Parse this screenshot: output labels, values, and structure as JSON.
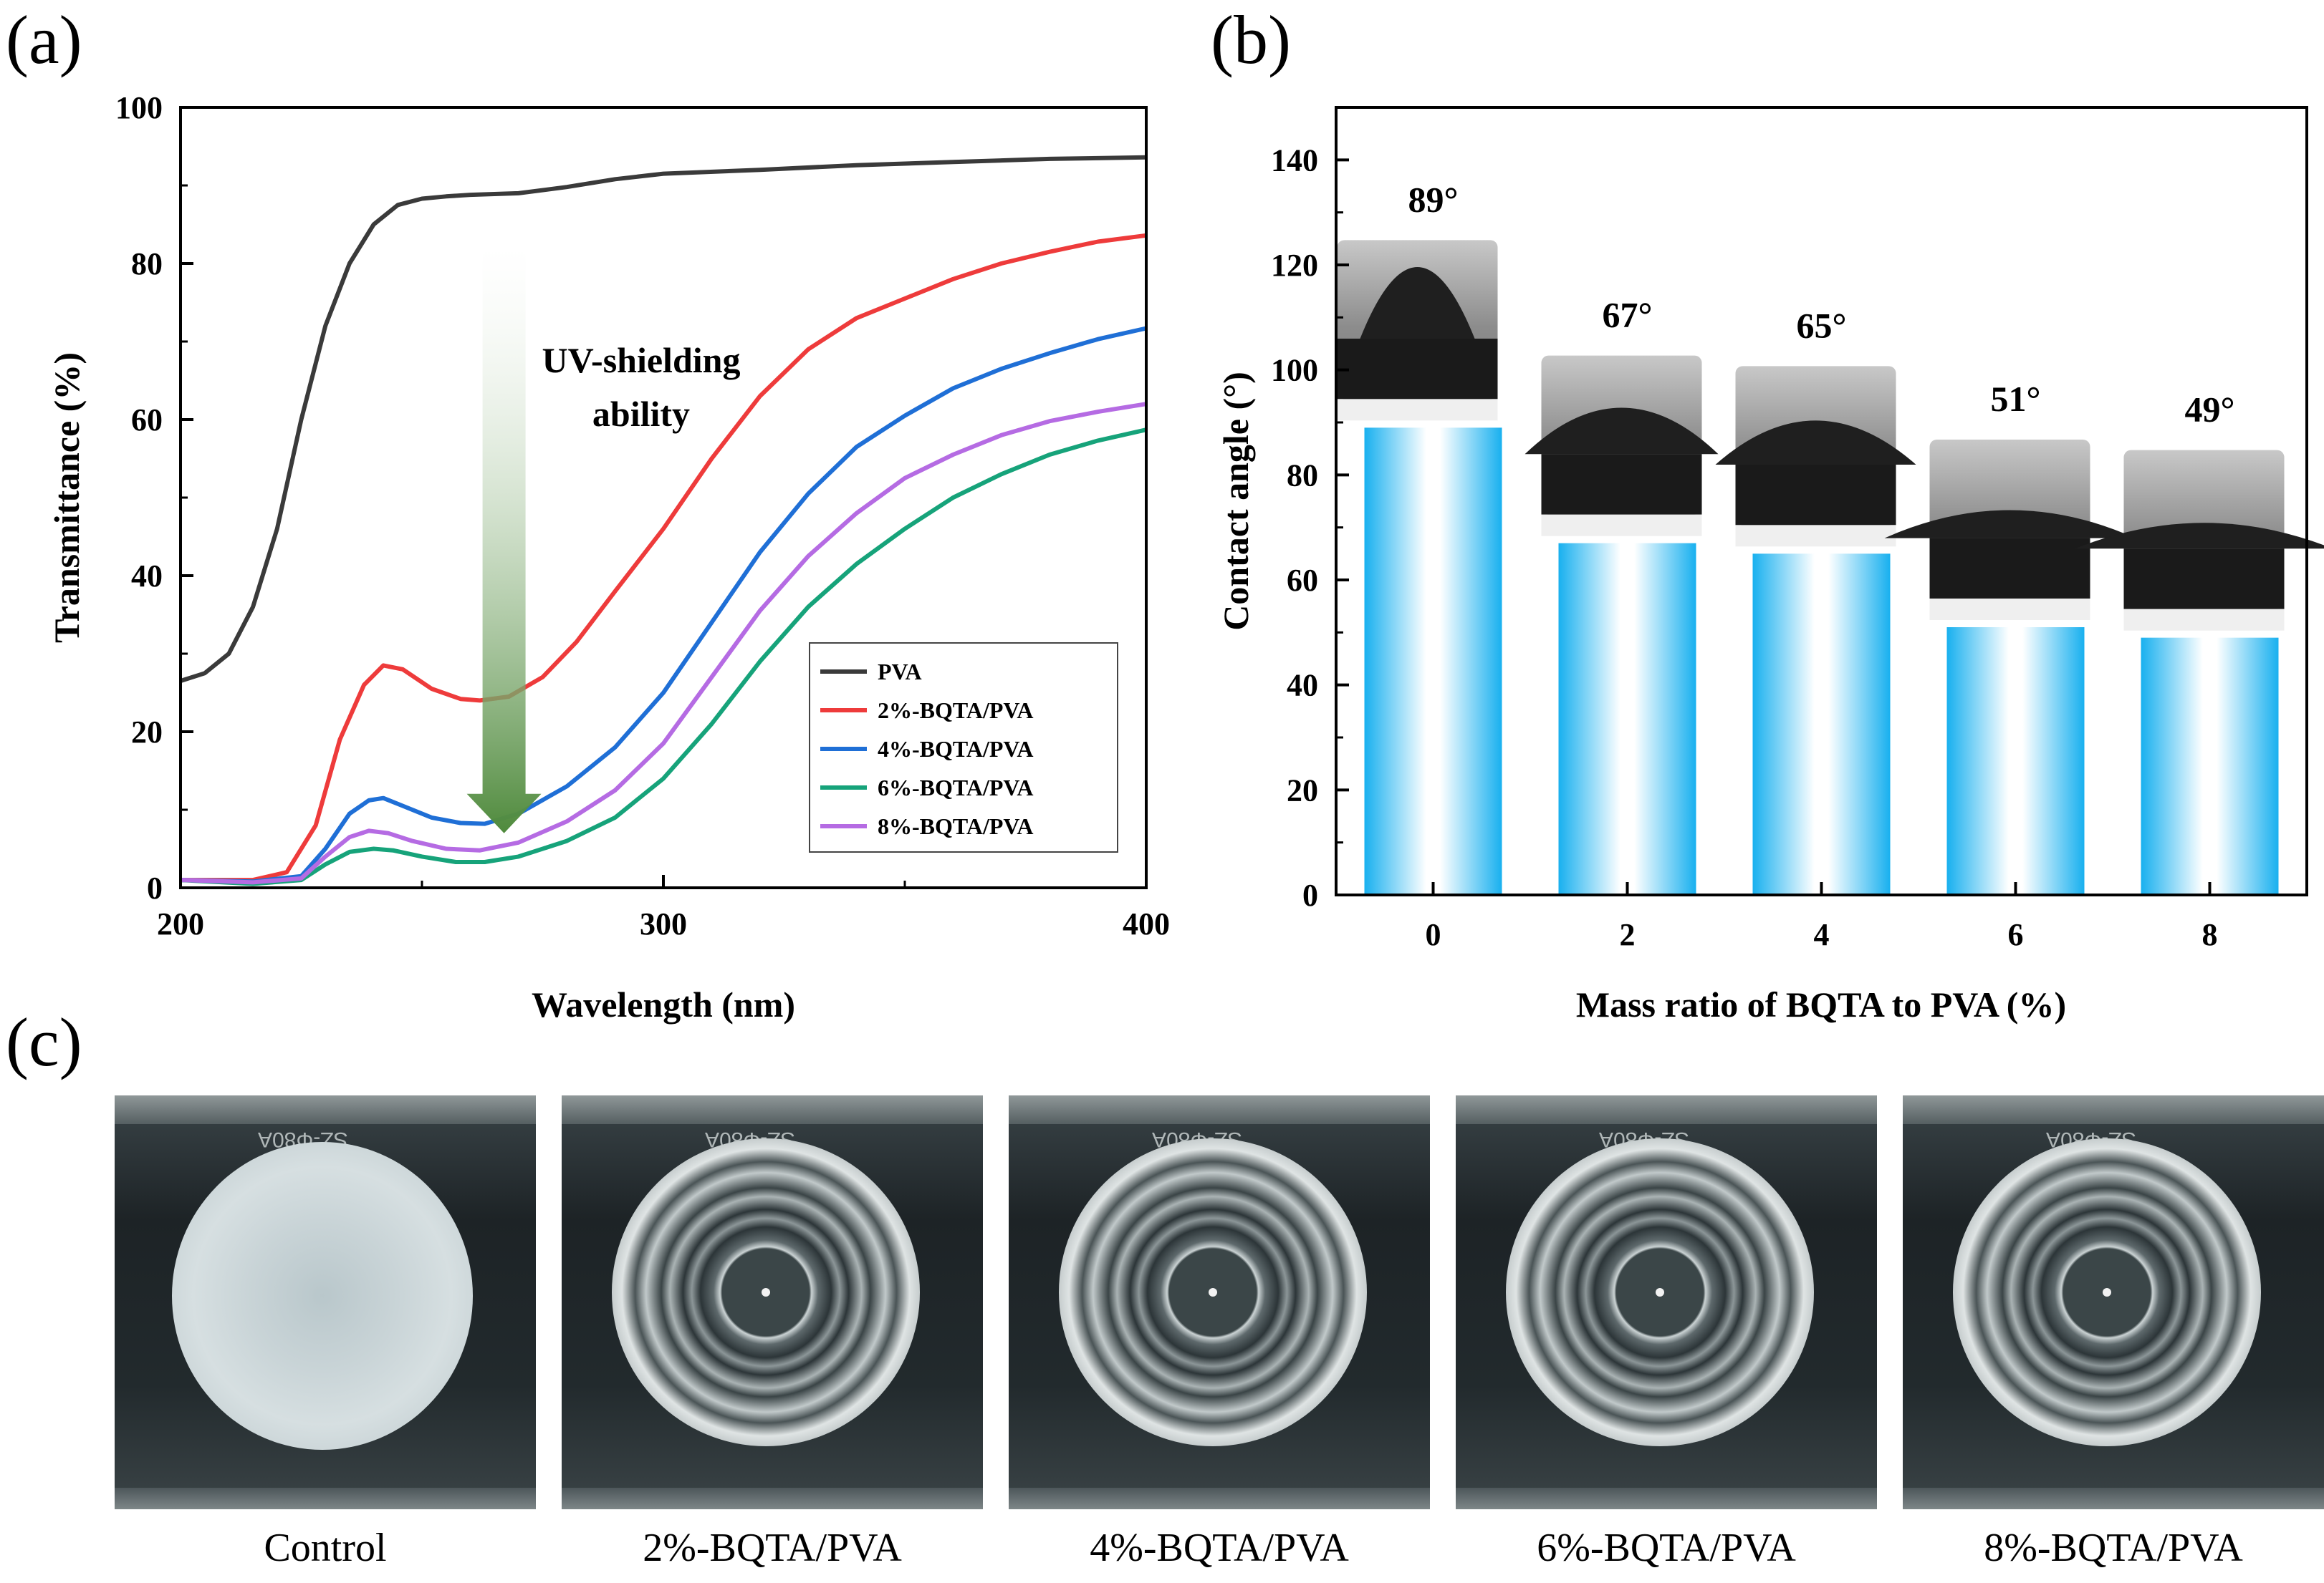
{
  "panel_labels": {
    "a": "(a)",
    "b": "(b)",
    "c": "(c)"
  },
  "chart_data": [
    {
      "type": "line",
      "panel": "(a)",
      "xlabel": "Wavelength (nm)",
      "ylabel": "Transmittance (%)",
      "xlim": [
        200,
        400
      ],
      "ylim": [
        0,
        100
      ],
      "xticks": [
        200,
        300,
        400
      ],
      "yticks": [
        0,
        20,
        40,
        60,
        80,
        100
      ],
      "annotation": {
        "line1": "UV-shielding",
        "line2": "ability",
        "arrow_from": [
          267,
          82
        ],
        "arrow_to": [
          267,
          7
        ]
      },
      "series": [
        {
          "name": "PVA",
          "color": "#3a3a3a",
          "x": [
            200,
            205,
            210,
            215,
            220,
            225,
            230,
            235,
            240,
            245,
            250,
            255,
            260,
            270,
            280,
            290,
            300,
            320,
            340,
            360,
            380,
            400
          ],
          "y": [
            26.5,
            27.5,
            30,
            36,
            46,
            60,
            72,
            80,
            85,
            87.5,
            88.3,
            88.6,
            88.8,
            89,
            89.8,
            90.8,
            91.5,
            92,
            92.6,
            93,
            93.4,
            93.6
          ]
        },
        {
          "name": "2%-BQTA/PVA",
          "color": "#ee3b3b",
          "x": [
            200,
            215,
            222,
            228,
            233,
            238,
            242,
            246,
            252,
            258,
            262,
            268,
            275,
            282,
            290,
            300,
            310,
            320,
            330,
            340,
            350,
            360,
            370,
            380,
            390,
            400
          ],
          "y": [
            1,
            1,
            2,
            8,
            19,
            26,
            28.5,
            28,
            25.5,
            24.2,
            24,
            24.5,
            27,
            31.5,
            38,
            46,
            55,
            63,
            69,
            73,
            75.5,
            78,
            80,
            81.5,
            82.8,
            83.6
          ]
        },
        {
          "name": "4%-BQTA/PVA",
          "color": "#1f6fd6",
          "x": [
            200,
            215,
            225,
            230,
            235,
            239,
            242,
            246,
            252,
            258,
            263,
            270,
            280,
            290,
            300,
            310,
            320,
            330,
            340,
            350,
            360,
            370,
            380,
            390,
            400
          ],
          "y": [
            1,
            0.8,
            1.5,
            5,
            9.5,
            11.2,
            11.5,
            10.5,
            9,
            8.3,
            8.2,
            9.5,
            13,
            18,
            25,
            34,
            43,
            50.5,
            56.5,
            60.5,
            64,
            66.5,
            68.5,
            70.3,
            71.7
          ]
        },
        {
          "name": "6%-BQTA/PVA",
          "color": "#16a37a",
          "x": [
            200,
            215,
            225,
            230,
            235,
            240,
            244,
            250,
            257,
            263,
            270,
            280,
            290,
            300,
            310,
            320,
            330,
            340,
            350,
            360,
            370,
            380,
            390,
            400
          ],
          "y": [
            1,
            0.5,
            1,
            3,
            4.6,
            5,
            4.8,
            4,
            3.3,
            3.3,
            4,
            6,
            9,
            14,
            21,
            29,
            36,
            41.5,
            46,
            50,
            53,
            55.5,
            57.3,
            58.7
          ]
        },
        {
          "name": "8%-BQTA/PVA",
          "color": "#b56be3",
          "x": [
            200,
            215,
            225,
            230,
            235,
            239,
            243,
            248,
            255,
            262,
            270,
            280,
            290,
            300,
            310,
            320,
            330,
            340,
            350,
            360,
            370,
            380,
            390,
            400
          ],
          "y": [
            1,
            0.7,
            1.2,
            4,
            6.5,
            7.3,
            7,
            6,
            5,
            4.8,
            5.8,
            8.5,
            12.5,
            18.5,
            27,
            35.5,
            42.5,
            48,
            52.5,
            55.5,
            58,
            59.8,
            61,
            62
          ]
        }
      ]
    },
    {
      "type": "bar",
      "panel": "(b)",
      "xlabel": "Mass ratio of BQTA to PVA (%)",
      "ylabel": "Contact angle (°)",
      "ylim": [
        0,
        150
      ],
      "yticks": [
        0,
        20,
        40,
        60,
        80,
        100,
        120,
        140
      ],
      "categories": [
        "0",
        "2",
        "4",
        "6",
        "8"
      ],
      "values": [
        89,
        67,
        65,
        51,
        49
      ],
      "data_labels": [
        "89°",
        "67°",
        "65°",
        "51°",
        "49°"
      ],
      "bar_color": "#1eb4ee"
    }
  ],
  "photos": [
    {
      "caption": "Control",
      "opaque": true,
      "mold_text": "SZ-Φ80A"
    },
    {
      "caption": "2%-BQTA/PVA",
      "opaque": false,
      "mold_text": "SZ-Φ80A"
    },
    {
      "caption": "4%-BQTA/PVA",
      "opaque": false,
      "mold_text": "SZ-Φ80A"
    },
    {
      "caption": "6%-BQTA/PVA",
      "opaque": false,
      "mold_text": "SZ-Φ80A"
    },
    {
      "caption": "8%-BQTA/PVA",
      "opaque": false,
      "mold_text": "SZ-Φ80A"
    }
  ]
}
